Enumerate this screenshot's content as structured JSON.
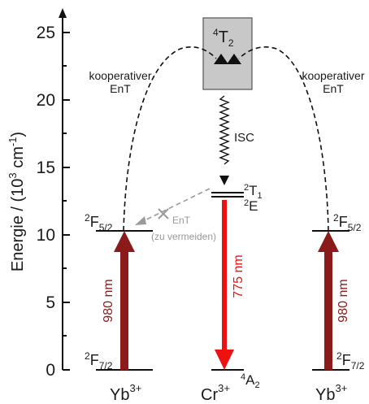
{
  "y_axis": {
    "label_main": "Energie / (10",
    "label_exp": "3",
    "label_unit": " cm",
    "label_unit_exp": "-1",
    "label_close": ")",
    "ticks": [
      "0",
      "5",
      "10",
      "15",
      "20",
      "25"
    ]
  },
  "ions": {
    "yb_left": {
      "base": "Yb",
      "sup": "3+"
    },
    "cr": {
      "base": "Cr",
      "sup": "3+"
    },
    "yb_right": {
      "base": "Yb",
      "sup": "3+"
    }
  },
  "levels": {
    "F72_left": {
      "pre": "2",
      "base": "F",
      "sub": "7/2"
    },
    "F52_left": {
      "pre": "2",
      "base": "F",
      "sub": "5/2"
    },
    "F52_right": {
      "pre": "2",
      "base": "F",
      "sub": "5/2"
    },
    "F72_right": {
      "pre": "2",
      "base": "F",
      "sub": "7/2"
    },
    "T2": {
      "pre": "4",
      "base": "T",
      "sub": "2"
    },
    "T1": {
      "pre": "2",
      "base": "T",
      "sub": "1"
    },
    "E": {
      "pre": "2",
      "base": "E"
    },
    "A2": {
      "pre": "4",
      "base": "A",
      "sub": "2"
    }
  },
  "arrows": {
    "yb_left_excitation": "980 nm",
    "yb_right_excitation": "980 nm",
    "cr_emission": "775 nm",
    "isc": "ISC"
  },
  "annotations": {
    "coop_left_1": "kooperativer",
    "coop_left_2": "EnT",
    "coop_right_1": "kooperativer",
    "coop_right_2": "EnT",
    "ent_avoid_1": "EnT",
    "ent_avoid_2": "(zu vermeiden)"
  },
  "colors": {
    "excitation": "#8b1a1a",
    "emission": "#ee1111",
    "t2_box": "#c8c8c8",
    "avoid": "#9a9a9a"
  }
}
